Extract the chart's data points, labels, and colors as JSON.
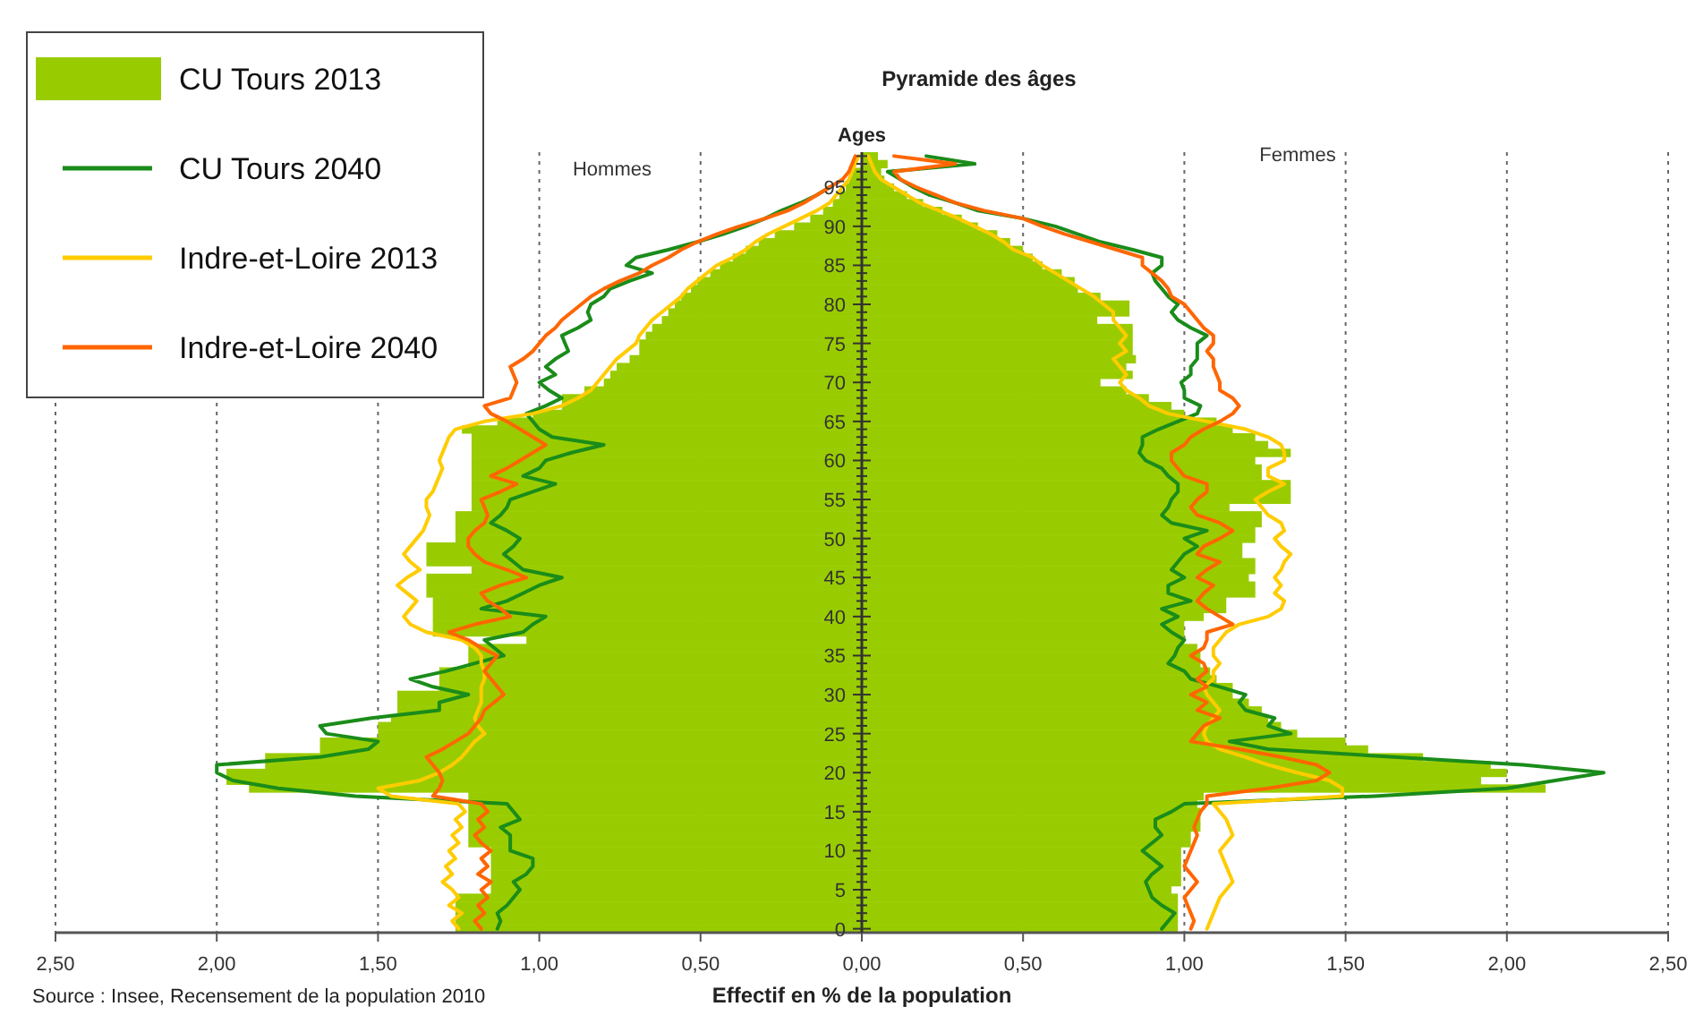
{
  "chart_data": {
    "type": "bar",
    "orientation": "horizontal",
    "title": "Pyramide des âges",
    "xlabel": "Effectif en % de la population",
    "ylabel": "Ages",
    "annotations": [
      "Hommes",
      "Femmes",
      "Source : Insee, Recensement de la population 2010"
    ],
    "categories": [
      null,
      null,
      null,
      null,
      "95",
      null,
      null,
      null,
      null,
      "90",
      null,
      null,
      null,
      null,
      "85",
      null,
      null,
      null,
      null,
      "80",
      null,
      null,
      null,
      null,
      "75",
      null,
      null,
      null,
      null,
      "70",
      null,
      null,
      null,
      null,
      "65",
      null,
      null,
      null,
      null,
      "60",
      null,
      null,
      null,
      null,
      "55",
      null,
      null,
      null,
      null,
      "50",
      null,
      null,
      null,
      null,
      "45",
      null,
      null,
      null,
      null,
      "40",
      null,
      null,
      null,
      null,
      "35",
      null,
      null,
      null,
      null,
      "30",
      null,
      null,
      null,
      null,
      "25",
      null,
      null,
      null,
      null,
      "20",
      null,
      null,
      null,
      null,
      "15",
      null,
      null,
      null,
      null,
      "10",
      null,
      null,
      null,
      null,
      "5",
      null,
      null,
      null,
      null,
      "0"
    ],
    "xlim": [
      -2.5,
      2.5
    ],
    "xticks": [
      {
        "value": -2.5,
        "label": "2,50"
      },
      {
        "value": -2,
        "label": "2,00"
      },
      {
        "value": -1.5,
        "label": "1,50"
      },
      {
        "value": -1,
        "label": "1,00"
      },
      {
        "value": -0.5,
        "label": "0,50"
      },
      {
        "value": 0,
        "label": "0,00"
      },
      {
        "value": 0.5,
        "label": "0,50"
      },
      {
        "value": 1,
        "label": "1,00"
      },
      {
        "value": 1.5,
        "label": "1,50"
      },
      {
        "value": 2,
        "label": "2,00"
      },
      {
        "value": 2.5,
        "label": "2,50"
      }
    ],
    "grid": "x",
    "legend": "top left",
    "stacked": true,
    "line_style": "solid",
    "marker": "none",
    "series": [
      {
        "name": "CU Tours 2013",
        "color": "#99cc00",
        "values": [
          null,
          null,
          -0.03,
          -0.04,
          -0.05,
          -0.07,
          -0.09,
          -0.12,
          -0.16,
          -0.21,
          -0.27,
          -0.32,
          -0.36,
          -0.4,
          -0.44,
          -0.47,
          -0.51,
          -0.53,
          -0.56,
          -0.58,
          -0.6,
          -0.62,
          -0.65,
          -0.67,
          -0.69,
          -0.69,
          -0.72,
          -0.76,
          -0.78,
          -0.8,
          -0.86,
          -0.93,
          -0.93,
          -1.02,
          -1.13,
          -1.24,
          -1.21,
          -1.21,
          -1.21,
          -1.21,
          -1.21,
          -1.21,
          -1.21,
          -1.21,
          -1.21,
          -1.21,
          -1.26,
          -1.26,
          -1.26,
          -1.26,
          -1.35,
          -1.35,
          -1.35,
          -1.21,
          -1.35,
          -1.35,
          -1.35,
          -1.33,
          -1.33,
          -1.33,
          -1.33,
          -1.33,
          -1.04,
          -1.22,
          -1.22,
          -1.22,
          -1.31,
          -1.31,
          -1.31,
          -1.44,
          -1.44,
          -1.44,
          -1.46,
          -1.5,
          -1.5,
          -1.68,
          -1.68,
          -1.85,
          -1.85,
          -1.97,
          -1.97,
          -1.9,
          -1.22,
          -1.22,
          -1.22,
          -1.22,
          -1.22,
          -1.22,
          -1.22,
          -1.15,
          -1.15,
          -1.15,
          -1.15,
          -1.15,
          -1.15,
          -1.26,
          -1.26,
          -1.26,
          -1.26,
          -1.26
        ]
      },
      {
        "color": "#99cc00",
        "values": [
          0.05,
          0.08,
          0.06,
          0.07,
          0.1,
          0.14,
          0.19,
          0.25,
          0.31,
          0.36,
          0.42,
          0.46,
          0.5,
          0.53,
          0.56,
          0.62,
          0.66,
          0.67,
          0.74,
          0.83,
          0.83,
          0.73,
          0.84,
          0.84,
          0.84,
          0.84,
          0.85,
          0.82,
          0.84,
          0.74,
          0.82,
          0.89,
          0.96,
          1.0,
          1.1,
          1.15,
          1.22,
          1.26,
          1.33,
          1.22,
          1.24,
          1.24,
          1.33,
          1.33,
          1.33,
          1.14,
          1.24,
          1.24,
          1.22,
          1.22,
          1.18,
          1.18,
          1.22,
          1.22,
          1.2,
          1.22,
          1.22,
          1.13,
          1.13,
          1.06,
          1.0,
          1.0,
          1.0,
          1.04,
          1.05,
          1.05,
          1.08,
          1.1,
          1.15,
          1.15,
          1.2,
          1.24,
          1.26,
          1.3,
          1.35,
          1.5,
          1.57,
          1.74,
          1.95,
          2.0,
          1.92,
          2.12,
          1.06,
          1.04,
          1.05,
          1.05,
          1.05,
          1.02,
          1.02,
          0.99,
          0.99,
          0.99,
          0.99,
          0.99,
          0.96,
          0.98,
          0.98,
          0.98,
          0.98,
          0.98
        ]
      },
      {
        "name": "CU Tours 2040",
        "type": "line",
        "color": "#1a8c1a",
        "values": [
          null,
          null,
          null,
          null,
          -0.1,
          -0.14,
          -0.19,
          -0.25,
          -0.3,
          -0.36,
          -0.43,
          -0.51,
          -0.6,
          -0.7,
          -0.73,
          -0.65,
          -0.72,
          -0.78,
          -0.8,
          -0.84,
          -0.85,
          -0.84,
          -0.88,
          -0.93,
          -0.92,
          -0.91,
          -0.95,
          -0.98,
          -0.95,
          -1.0,
          -0.97,
          -0.93,
          -0.98,
          -1.04,
          -1.02,
          -1.0,
          -0.96,
          -0.8,
          -0.9,
          -0.98,
          -1.0,
          -1.05,
          -0.95,
          -1.02,
          -1.09,
          -1.1,
          -1.12,
          -1.15,
          -1.1,
          -1.06,
          -1.08,
          -1.11,
          -1.08,
          -1.05,
          -0.93,
          -1.0,
          -1.05,
          -1.1,
          -1.18,
          -0.98,
          -1.02,
          -1.05,
          -1.17,
          -1.14,
          -1.11,
          -1.2,
          -1.29,
          -1.4,
          -1.33,
          -1.22,
          -1.31,
          -1.31,
          -1.52,
          -1.68,
          -1.66,
          -1.5,
          -1.53,
          -1.68,
          -2.0,
          -2.0,
          -1.95,
          -1.81,
          -1.57,
          -1.1,
          -1.08,
          -1.06,
          -1.12,
          -1.09,
          -1.09,
          -1.09,
          -1.02,
          -1.02,
          -1.04,
          -1.08,
          -1.06,
          -1.08,
          -1.1,
          -1.13,
          -1.12,
          -1.13
        ]
      },
      {
        "type": "line",
        "color": "#1a8c1a",
        "values": [
          0.2,
          0.35,
          0.08,
          0.12,
          0.16,
          0.21,
          0.29,
          0.36,
          0.5,
          0.6,
          0.67,
          0.74,
          0.84,
          0.93,
          0.93,
          0.9,
          0.91,
          0.93,
          0.95,
          0.98,
          0.96,
          0.98,
          1.02,
          1.07,
          1.04,
          1.04,
          1.04,
          1.02,
          1.02,
          0.99,
          1.0,
          1.0,
          1.05,
          1.04,
          0.98,
          0.92,
          0.87,
          0.87,
          0.86,
          0.88,
          0.93,
          0.95,
          0.98,
          0.98,
          0.96,
          0.95,
          0.93,
          0.96,
          1.07,
          1.0,
          1.04,
          1.0,
          0.98,
          0.96,
          1.0,
          0.95,
          0.95,
          1.02,
          0.93,
          0.98,
          0.93,
          0.96,
          1.0,
          0.98,
          0.97,
          0.95,
          1.0,
          1.02,
          1.11,
          1.19,
          1.17,
          1.19,
          1.28,
          1.26,
          1.33,
          1.14,
          1.26,
          1.65,
          2.05,
          2.3,
          2.15,
          2.0,
          1.59,
          1.0,
          0.96,
          0.91,
          0.91,
          0.93,
          0.9,
          0.87,
          0.9,
          0.93,
          0.9,
          0.88,
          0.89,
          0.9,
          0.93,
          0.97,
          0.95,
          0.93
        ]
      },
      {
        "name": "Indre-et-Loire 2013",
        "type": "line",
        "color": "#ffcc00",
        "values": [
          -0.01,
          -0.02,
          -0.03,
          -0.04,
          -0.06,
          -0.08,
          -0.1,
          -0.14,
          -0.19,
          -0.24,
          -0.29,
          -0.33,
          -0.36,
          -0.4,
          -0.45,
          -0.48,
          -0.51,
          -0.54,
          -0.56,
          -0.59,
          -0.62,
          -0.65,
          -0.67,
          -0.69,
          -0.7,
          -0.73,
          -0.76,
          -0.78,
          -0.8,
          -0.82,
          -0.84,
          -0.88,
          -0.93,
          -1.02,
          -1.17,
          -1.26,
          -1.28,
          -1.29,
          -1.3,
          -1.31,
          -1.3,
          -1.31,
          -1.32,
          -1.33,
          -1.35,
          -1.35,
          -1.34,
          -1.35,
          -1.36,
          -1.38,
          -1.4,
          -1.42,
          -1.4,
          -1.37,
          -1.41,
          -1.44,
          -1.41,
          -1.38,
          -1.4,
          -1.42,
          -1.4,
          -1.35,
          -1.24,
          -1.2,
          -1.18,
          -1.18,
          -1.17,
          -1.17,
          -1.18,
          -1.18,
          -1.18,
          -1.19,
          -1.2,
          -1.19,
          -1.17,
          -1.2,
          -1.22,
          -1.24,
          -1.27,
          -1.31,
          -1.37,
          -1.5,
          -1.46,
          -1.25,
          -1.23,
          -1.26,
          -1.24,
          -1.27,
          -1.25,
          -1.28,
          -1.26,
          -1.29,
          -1.27,
          -1.3,
          -1.27,
          -1.25,
          -1.28,
          -1.24,
          -1.27,
          -1.25
        ]
      },
      {
        "type": "line",
        "color": "#ffcc00",
        "values": [
          0.02,
          0.03,
          0.04,
          0.06,
          0.1,
          0.14,
          0.18,
          0.24,
          0.3,
          0.35,
          0.4,
          0.44,
          0.47,
          0.53,
          0.56,
          0.6,
          0.64,
          0.68,
          0.72,
          0.75,
          0.78,
          0.78,
          0.8,
          0.82,
          0.8,
          0.82,
          0.78,
          0.8,
          0.82,
          0.8,
          0.82,
          0.86,
          0.89,
          0.95,
          1.07,
          1.19,
          1.26,
          1.3,
          1.31,
          1.31,
          1.26,
          1.26,
          1.31,
          1.26,
          1.22,
          1.24,
          1.26,
          1.3,
          1.31,
          1.28,
          1.3,
          1.33,
          1.31,
          1.3,
          1.28,
          1.3,
          1.28,
          1.31,
          1.3,
          1.26,
          1.17,
          1.13,
          1.11,
          1.09,
          1.09,
          1.11,
          1.09,
          1.09,
          1.06,
          1.07,
          1.09,
          1.11,
          1.09,
          1.07,
          1.06,
          1.07,
          1.11,
          1.19,
          1.26,
          1.35,
          1.45,
          1.49,
          1.49,
          1.09,
          1.11,
          1.13,
          1.14,
          1.15,
          1.13,
          1.11,
          1.12,
          1.13,
          1.14,
          1.15,
          1.13,
          1.11,
          1.1,
          1.09,
          1.08,
          1.07
        ]
      },
      {
        "name": "Indre-et-Loire 2040",
        "type": "line",
        "color": "#ff6600",
        "values": [
          -0.02,
          -0.03,
          -0.04,
          -0.06,
          -0.1,
          -0.14,
          -0.18,
          -0.23,
          -0.3,
          -0.38,
          -0.45,
          -0.51,
          -0.56,
          -0.6,
          -0.65,
          -0.69,
          -0.75,
          -0.8,
          -0.84,
          -0.87,
          -0.9,
          -0.93,
          -0.95,
          -0.98,
          -1.0,
          -1.02,
          -1.05,
          -1.09,
          -1.08,
          -1.07,
          -1.08,
          -1.09,
          -1.17,
          -1.15,
          -1.1,
          -1.06,
          -1.02,
          -0.98,
          -1.02,
          -1.06,
          -1.1,
          -1.15,
          -1.07,
          -1.12,
          -1.18,
          -1.17,
          -1.16,
          -1.17,
          -1.2,
          -1.22,
          -1.22,
          -1.2,
          -1.17,
          -1.1,
          -1.04,
          -1.12,
          -1.18,
          -1.16,
          -1.12,
          -1.09,
          -1.2,
          -1.28,
          -1.22,
          -1.18,
          -1.13,
          -1.15,
          -1.17,
          -1.15,
          -1.13,
          -1.11,
          -1.14,
          -1.17,
          -1.18,
          -1.2,
          -1.22,
          -1.26,
          -1.3,
          -1.35,
          -1.33,
          -1.31,
          -1.3,
          -1.31,
          -1.33,
          -1.18,
          -1.16,
          -1.19,
          -1.17,
          -1.2,
          -1.18,
          -1.15,
          -1.18,
          -1.16,
          -1.19,
          -1.15,
          -1.18,
          -1.16,
          -1.19,
          -1.17,
          -1.2,
          -1.18
        ]
      },
      {
        "type": "line",
        "color": "#ff6600",
        "values": [
          0.1,
          0.29,
          0.1,
          0.12,
          0.17,
          0.23,
          0.29,
          0.38,
          0.5,
          0.56,
          0.63,
          0.71,
          0.79,
          0.87,
          0.87,
          0.9,
          0.93,
          0.95,
          0.96,
          1.0,
          1.02,
          1.04,
          1.06,
          1.09,
          1.09,
          1.07,
          1.09,
          1.09,
          1.1,
          1.11,
          1.11,
          1.15,
          1.17,
          1.15,
          1.11,
          1.06,
          1.02,
          1.0,
          0.96,
          0.96,
          0.98,
          1.0,
          1.07,
          1.07,
          1.04,
          1.02,
          1.04,
          1.11,
          1.15,
          1.11,
          1.06,
          1.04,
          1.11,
          1.07,
          1.04,
          1.09,
          1.06,
          1.04,
          1.07,
          1.11,
          1.15,
          1.07,
          1.07,
          1.06,
          1.02,
          1.06,
          1.07,
          1.04,
          1.07,
          1.02,
          1.07,
          1.04,
          1.11,
          1.06,
          1.04,
          1.02,
          1.17,
          1.3,
          1.41,
          1.45,
          1.41,
          1.26,
          1.07,
          1.07,
          1.05,
          1.04,
          1.03,
          1.04,
          1.03,
          1.02,
          1.01,
          1.0,
          1.02,
          1.04,
          1.02,
          1.0,
          1.01,
          1.02,
          1.03,
          1.02
        ]
      }
    ]
  }
}
